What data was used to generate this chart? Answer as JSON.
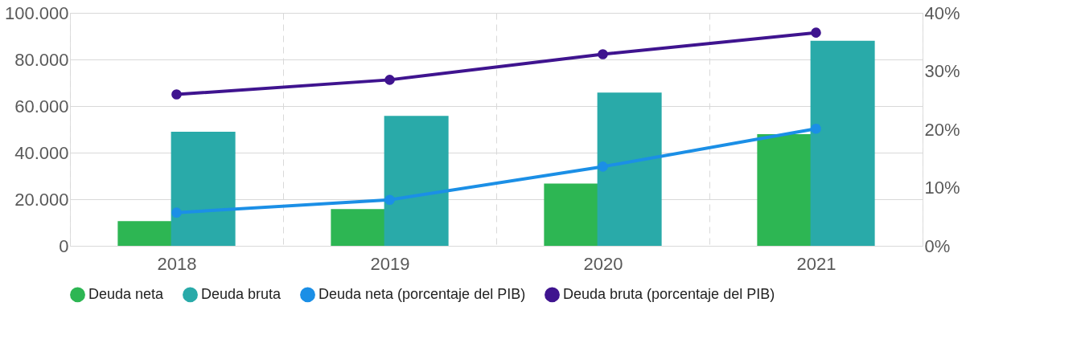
{
  "chart_data": {
    "type": "bar",
    "categories": [
      "2018",
      "2019",
      "2020",
      "2021"
    ],
    "series": [
      {
        "name": "Deuda neta",
        "color": "#2db653",
        "values": [
          10600,
          15800,
          26700,
          47900
        ]
      },
      {
        "name": "Deuda bruta",
        "color": "#29aaa9",
        "values": [
          49000,
          55800,
          65800,
          88000
        ]
      },
      {
        "name": "Deuda neta (porcentaje del PIB)",
        "type": "line",
        "axis": "y2",
        "color": "#1b8fe6",
        "values": [
          5.7,
          7.9,
          13.6,
          20.1
        ]
      },
      {
        "name": "Deuda bruta (porcentaje del PIB)",
        "type": "line",
        "axis": "y2",
        "color": "#3f148f",
        "values": [
          26,
          28.5,
          32.9,
          36.6
        ]
      }
    ],
    "ylim": [
      0,
      100000
    ],
    "yticks": [
      {
        "value": 0,
        "label": "0"
      },
      {
        "value": 20000,
        "label": "20.000"
      },
      {
        "value": 40000,
        "label": "40.000"
      },
      {
        "value": 60000,
        "label": "60.000"
      },
      {
        "value": 80000,
        "label": "80.000"
      },
      {
        "value": 100000,
        "label": "100.000"
      }
    ],
    "y2lim": [
      0,
      40
    ],
    "y2ticks": [
      {
        "value": 0,
        "label": "0%"
      },
      {
        "value": 10,
        "label": "10%"
      },
      {
        "value": 20,
        "label": "20%"
      },
      {
        "value": 30,
        "label": "30%"
      },
      {
        "value": 40,
        "label": "40%"
      }
    ],
    "grid": true,
    "legend": "bottom",
    "marker": "circle",
    "line_style": "solid"
  }
}
